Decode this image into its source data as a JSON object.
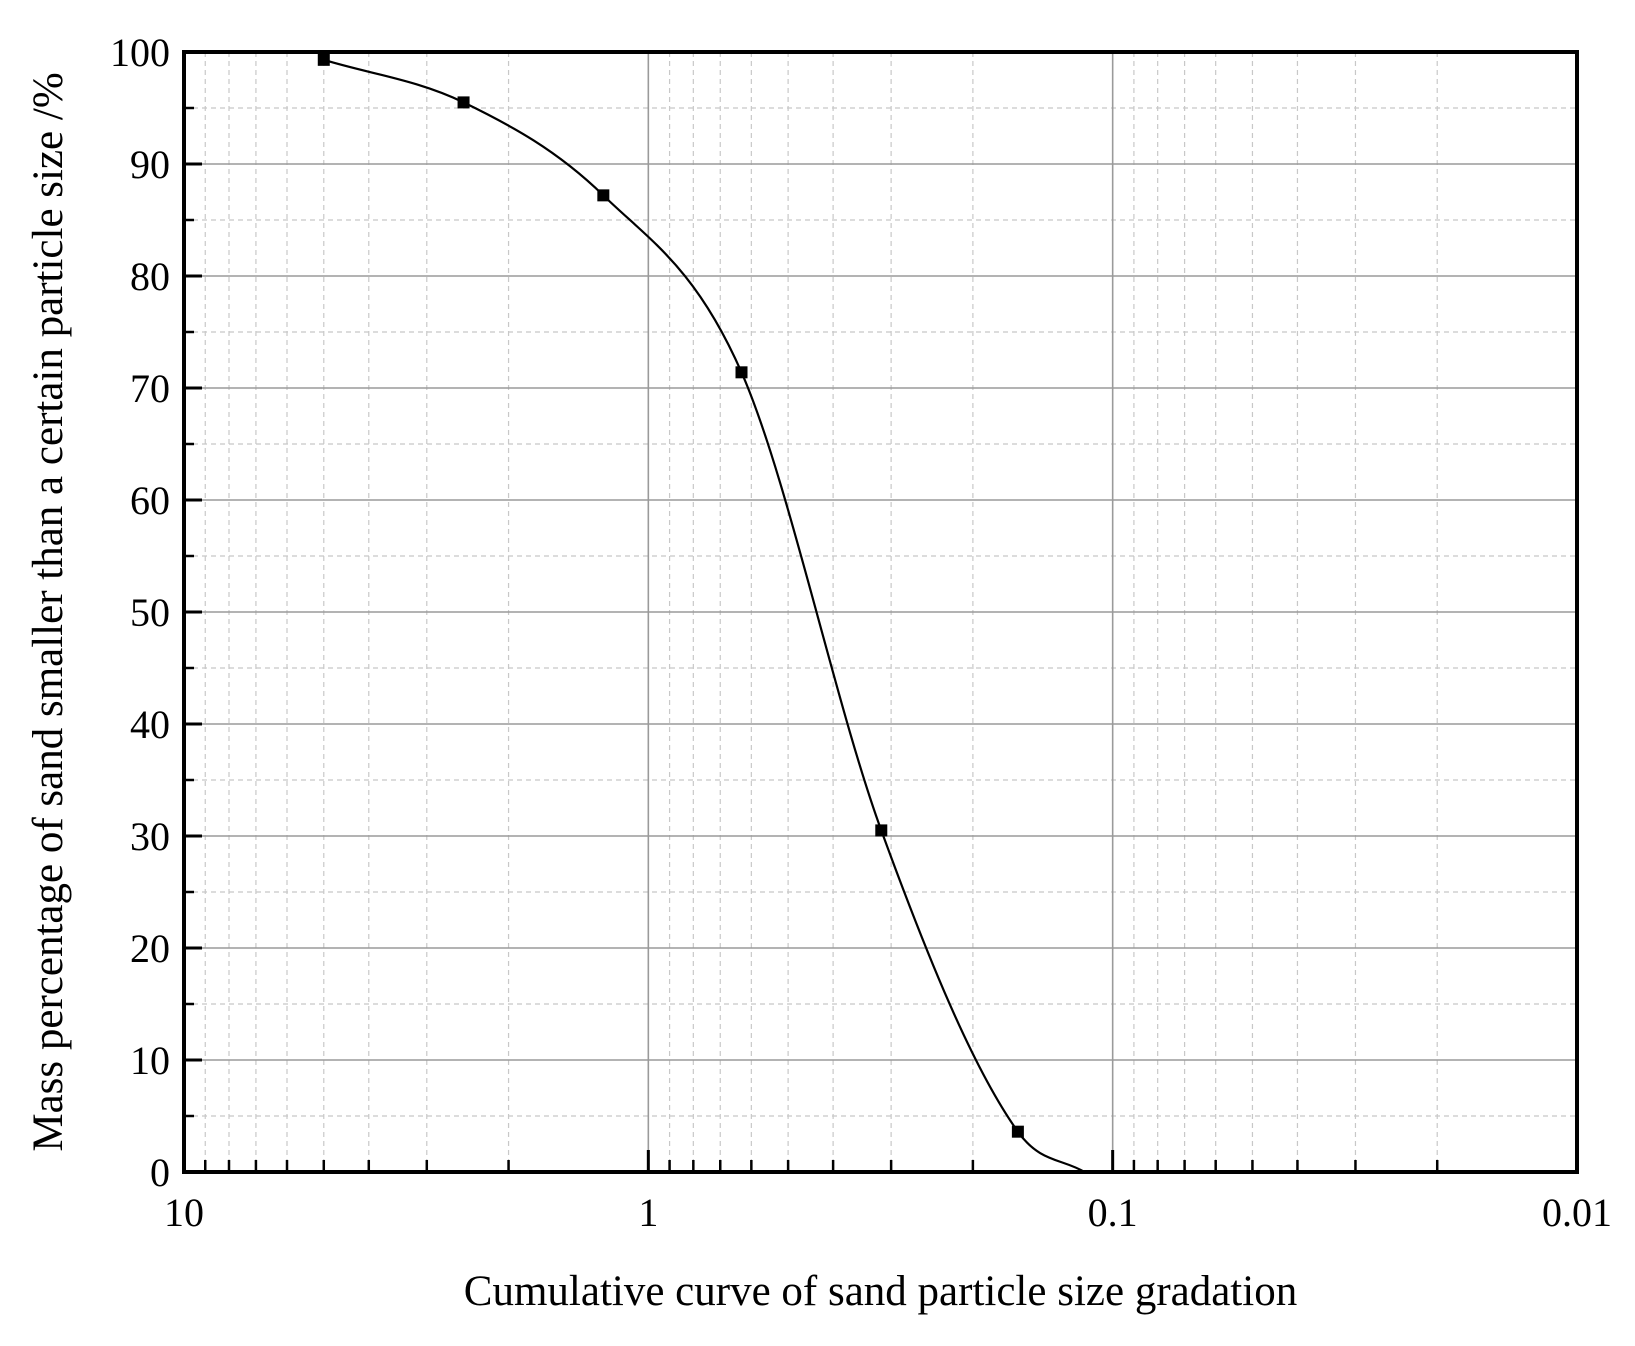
{
  "chart_data": {
    "type": "line",
    "title": "",
    "xlabel": "Cumulative curve of sand particle size gradation",
    "ylabel": "Mass percentage of sand smaller than a certain particle size /%",
    "x_scale": "log",
    "x_reversed": true,
    "xlim": [
      10,
      0.01
    ],
    "ylim": [
      0,
      100
    ],
    "x_ticks": [
      10,
      1,
      0.1,
      0.01
    ],
    "x_tick_labels": [
      "10",
      "1",
      "0.1",
      "0.01"
    ],
    "y_ticks": [
      0,
      10,
      20,
      30,
      40,
      50,
      60,
      70,
      80,
      90,
      100
    ],
    "y_tick_labels": [
      "0",
      "10",
      "20",
      "30",
      "40",
      "50",
      "60",
      "70",
      "80",
      "90",
      "100"
    ],
    "grid": true,
    "legend": "none",
    "series": [
      {
        "x": [
          5,
          2.5,
          1.25,
          0.63,
          0.315,
          0.16,
          0.115
        ],
        "y": [
          99.3,
          95.5,
          87.2,
          71.4,
          30.5,
          3.6,
          0
        ],
        "markers": [
          true,
          true,
          true,
          true,
          true,
          true,
          false
        ],
        "marker": "square",
        "color": "#000000"
      }
    ]
  }
}
